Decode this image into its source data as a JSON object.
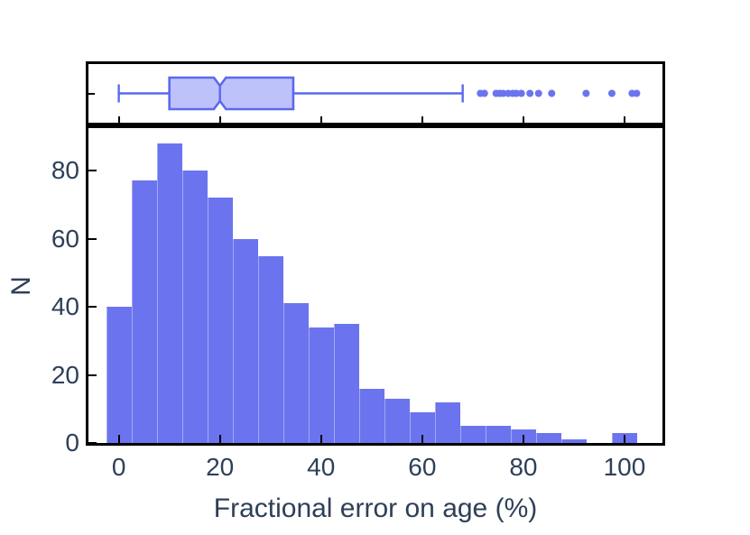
{
  "figure": {
    "background": "#ffffff",
    "text_color": "#2e4057",
    "axis_color": "#000000",
    "accent_color": "#6b74ee"
  },
  "chart_data": [
    {
      "type": "boxplot",
      "orientation": "horizontal",
      "stats": {
        "whisker_low": 0,
        "q1": 10,
        "median": 20,
        "q3": 34.5,
        "whisker_high": 68,
        "notch_low": 18.8,
        "notch_high": 21.2
      },
      "outliers": [
        71.5,
        72.3,
        74.6,
        75.3,
        76.0,
        77.0,
        77.9,
        78.6,
        79.6,
        81.3,
        83.0,
        85.6,
        92.4,
        97.5,
        101.5,
        102.4
      ],
      "box_fill": "#bdc2fb",
      "box_edge": "#5b69ed",
      "outlier_color": "#6b74ee",
      "xlim": [
        -6,
        107.5
      ],
      "grid": false,
      "legend": "none"
    },
    {
      "type": "histogram",
      "bin_start": -2.5,
      "bin_width": 5,
      "bin_centers": [
        0,
        5,
        10,
        15,
        20,
        25,
        30,
        35,
        40,
        45,
        50,
        55,
        60,
        65,
        70,
        75,
        80,
        85,
        90,
        95,
        100
      ],
      "counts": [
        40,
        77,
        88,
        80,
        72,
        60,
        55,
        41,
        34,
        35,
        16,
        13,
        9,
        12,
        5,
        5,
        4,
        3,
        1,
        0,
        3
      ],
      "bar_color": "#6b74ee",
      "xlabel": "Fractional error on age (%)",
      "ylabel": "N",
      "xlim": [
        -6,
        107.5
      ],
      "ylim": [
        0,
        92.5
      ],
      "xticks": [
        "0",
        "20",
        "40",
        "60",
        "80",
        "100"
      ],
      "xtick_values": [
        0,
        20,
        40,
        60,
        80,
        100
      ],
      "yticks": [
        "0",
        "20",
        "40",
        "60",
        "80"
      ],
      "ytick_values": [
        0,
        20,
        40,
        60,
        80
      ],
      "grid": false,
      "legend": "none"
    }
  ]
}
